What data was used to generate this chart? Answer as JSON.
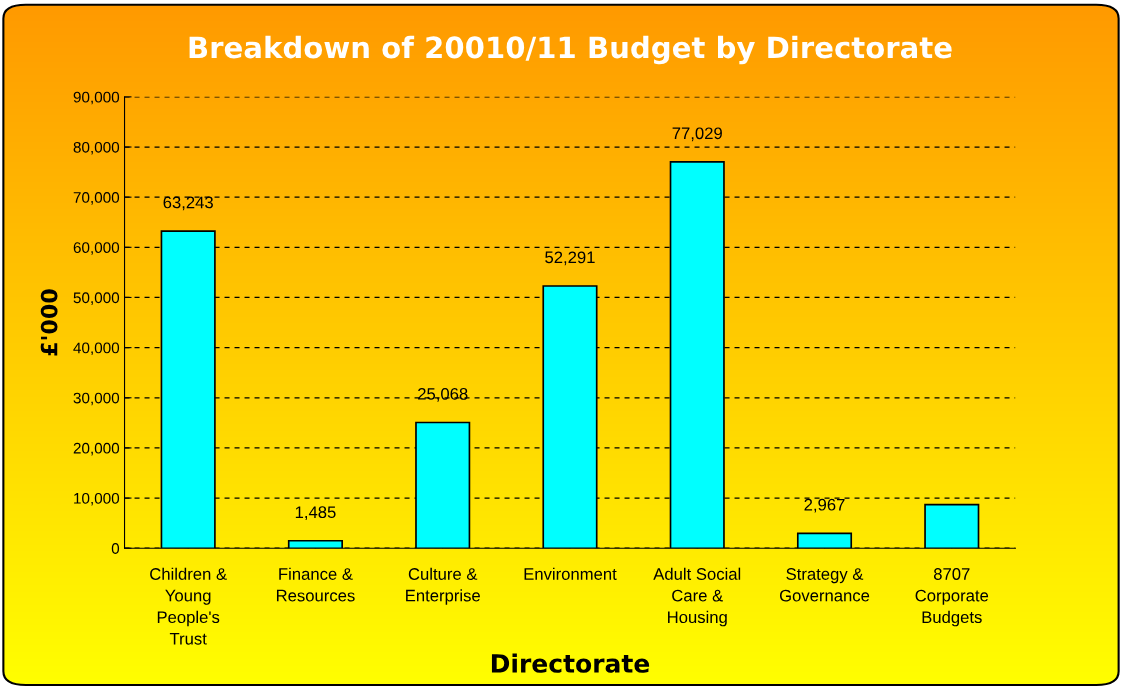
{
  "chart_data": {
    "type": "bar",
    "title": "Breakdown of 20010/11 Budget by Directorate",
    "xlabel": "Directorate",
    "ylabel": "£'000",
    "categories": [
      "Children &\nYoung\nPeople's\nTrust",
      "Finance &\nResources",
      "Culture &\nEnterprise",
      "Environment",
      "Adult Social\nCare &\nHousing",
      "Strategy &\nGovernance",
      "8707\nCorporate\nBudgets"
    ],
    "values": [
      63243,
      1485,
      25068,
      52291,
      77029,
      2967,
      8707
    ],
    "value_labels": [
      "63,243",
      "1,485",
      "25,068",
      "52,291",
      "77,029",
      "2,967",
      null
    ],
    "color": "#00ffff",
    "ylim": [
      0,
      90000
    ],
    "yticks": [
      {
        "value": 0,
        "label": "0"
      },
      {
        "value": 10000,
        "label": "10,000"
      },
      {
        "value": 20000,
        "label": "20,000"
      },
      {
        "value": 30000,
        "label": "30,000"
      },
      {
        "value": 40000,
        "label": "40,000"
      },
      {
        "value": 50000,
        "label": "50,000"
      },
      {
        "value": 60000,
        "label": "60,000"
      },
      {
        "value": 70000,
        "label": "70,000"
      },
      {
        "value": 80000,
        "label": "80,000"
      },
      {
        "value": 90000,
        "label": "90,000"
      }
    ],
    "grid": "y",
    "legend": false
  }
}
